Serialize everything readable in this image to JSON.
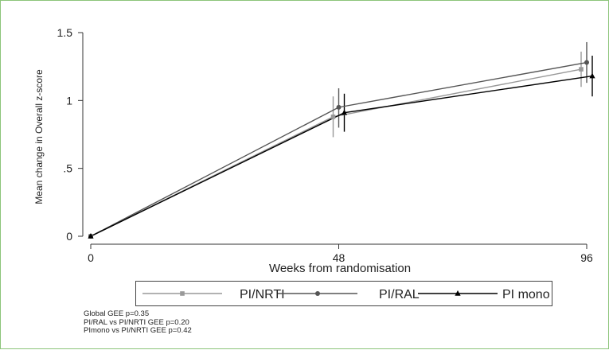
{
  "chart_data": {
    "type": "line",
    "xlabel": "Weeks from randomisation",
    "ylabel": "Mean change in Overall z-score",
    "x": [
      0,
      48,
      96
    ],
    "xticks": [
      "0",
      "48",
      "96"
    ],
    "yticks": [
      "0",
      ".5",
      "1",
      "1.5"
    ],
    "ytick_values": [
      0,
      0.5,
      1,
      1.5
    ],
    "xlim": [
      0,
      96
    ],
    "ylim": [
      0,
      1.5
    ],
    "series": [
      {
        "name": "PI/NRTI",
        "values": [
          0,
          0.88,
          1.23
        ],
        "ci_low": [
          0,
          0.73,
          1.1
        ],
        "ci_high": [
          0,
          1.03,
          1.36
        ],
        "color": "#999999",
        "marker": "square"
      },
      {
        "name": "PI/RAL",
        "values": [
          0,
          0.95,
          1.28
        ],
        "ci_low": [
          0,
          0.8,
          1.13
        ],
        "ci_high": [
          0,
          1.09,
          1.43
        ],
        "color": "#555555",
        "marker": "circle"
      },
      {
        "name": "PI mono",
        "values": [
          0,
          0.91,
          1.18
        ],
        "ci_low": [
          0,
          0.77,
          1.03
        ],
        "ci_high": [
          0,
          1.05,
          1.33
        ],
        "color": "#000000",
        "marker": "triangle"
      }
    ],
    "grid": false,
    "legend_position": "bottom"
  },
  "notes": [
    "Global GEE  p=0.35",
    "PI/RAL vs PI/NRTI GEE p=0.20",
    "PImono vs PI/NRTI GEE p=0.42"
  ]
}
